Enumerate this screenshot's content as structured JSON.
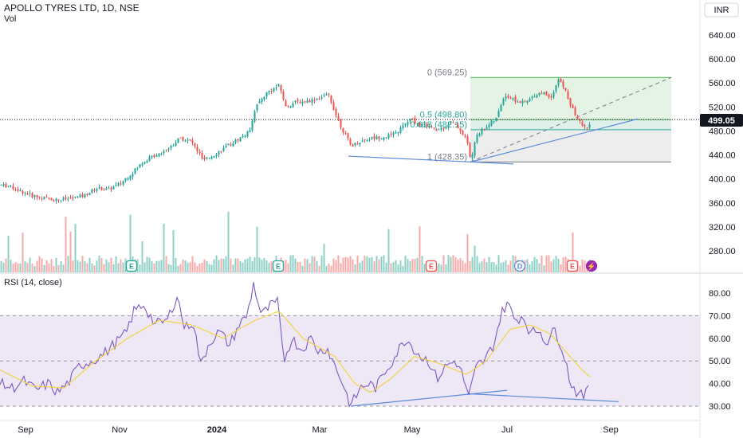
{
  "header": {
    "title": "APOLLO TYRES LTD, 1D, NSE",
    "volume_label": "Vol",
    "currency": "INR"
  },
  "price_axis": {
    "ticks": [
      640,
      600,
      560,
      520,
      480,
      440,
      400,
      360,
      320,
      280
    ],
    "labels": [
      "640.00",
      "600.00",
      "560.00",
      "520.00",
      "480.00",
      "440.00",
      "400.00",
      "360.00",
      "320.00",
      "280.00"
    ],
    "range": [
      250,
      680
    ]
  },
  "last_price": {
    "value": 499.05,
    "label": "499.05",
    "color": "#131722"
  },
  "fib": {
    "levels": [
      {
        "ratio": 0,
        "price": 569.25,
        "label": "0 (569.25)"
      },
      {
        "ratio": 0.5,
        "price": 498.8,
        "label": "0.5 (498.80)"
      },
      {
        "ratio": 0.618,
        "price": 482.15,
        "label": "0.618 (482.15)"
      },
      {
        "ratio": 1,
        "price": 428.35,
        "label": "1 (428.35)"
      }
    ],
    "colors": {
      "upper_fill": "#e4f3e4",
      "middle_fill": "#dff0ea",
      "lower_fill": "#ededed",
      "line_green": "#4caf50",
      "line_teal": "#26a69a",
      "line_gray": "#787b86"
    }
  },
  "rsi": {
    "title": "RSI (14, close)",
    "ticks": [
      80,
      70,
      60,
      50,
      40,
      30
    ],
    "labels": [
      "80.00",
      "70.00",
      "60.00",
      "50.00",
      "40.00",
      "30.00"
    ],
    "range": [
      24,
      86
    ],
    "band": [
      30,
      70
    ],
    "colors": {
      "line": "#7e57c2",
      "ma": "#f2d33a",
      "band": "#ede7f6"
    }
  },
  "time_axis": {
    "labels": [
      "Sep",
      "Nov",
      "2024",
      "Mar",
      "May",
      "Jul",
      "Sep"
    ]
  },
  "events": [
    {
      "type": "earnings",
      "glyph": "E"
    },
    {
      "type": "earnings",
      "glyph": "E"
    },
    {
      "type": "earnings",
      "glyph": "E"
    },
    {
      "type": "dividend",
      "glyph": "D"
    },
    {
      "type": "earnings",
      "glyph": "E"
    },
    {
      "type": "split",
      "glyph": "⚡"
    }
  ],
  "colors": {
    "up": "#26a69a",
    "down": "#ef5350",
    "trend": "#5b8bd9",
    "vol_up": "#8fd0c6",
    "vol_down": "#f7a9a7"
  },
  "chart_data": {
    "type": "candlestick",
    "series_name": "APOLLO TYRES LTD",
    "price_keypoints": [
      [
        0,
        390
      ],
      [
        10,
        388
      ],
      [
        25,
        380
      ],
      [
        40,
        372
      ],
      [
        55,
        368
      ],
      [
        72,
        365
      ],
      [
        90,
        368
      ],
      [
        105,
        372
      ],
      [
        120,
        385
      ],
      [
        135,
        382
      ],
      [
        150,
        392
      ],
      [
        165,
        410
      ],
      [
        180,
        430
      ],
      [
        195,
        440
      ],
      [
        210,
        450
      ],
      [
        225,
        468
      ],
      [
        240,
        462
      ],
      [
        255,
        430
      ],
      [
        270,
        442
      ],
      [
        285,
        455
      ],
      [
        300,
        468
      ],
      [
        312,
        478
      ],
      [
        320,
        520
      ],
      [
        335,
        545
      ],
      [
        350,
        556
      ],
      [
        358,
        520
      ],
      [
        370,
        528
      ],
      [
        385,
        530
      ],
      [
        400,
        535
      ],
      [
        412,
        540
      ],
      [
        420,
        510
      ],
      [
        430,
        480
      ],
      [
        440,
        455
      ],
      [
        450,
        462
      ],
      [
        465,
        468
      ],
      [
        480,
        470
      ],
      [
        495,
        475
      ],
      [
        505,
        488
      ],
      [
        515,
        500
      ],
      [
        525,
        490
      ],
      [
        535,
        490
      ],
      [
        545,
        480
      ],
      [
        555,
        485
      ],
      [
        565,
        495
      ],
      [
        575,
        485
      ],
      [
        585,
        465
      ],
      [
        590,
        430
      ],
      [
        598,
        475
      ],
      [
        610,
        488
      ],
      [
        622,
        500
      ],
      [
        632,
        540
      ],
      [
        640,
        535
      ],
      [
        650,
        528
      ],
      [
        660,
        528
      ],
      [
        670,
        540
      ],
      [
        680,
        545
      ],
      [
        690,
        535
      ],
      [
        700,
        566
      ],
      [
        708,
        550
      ],
      [
        716,
        520
      ],
      [
        724,
        500
      ],
      [
        732,
        485
      ],
      [
        740,
        490
      ]
    ],
    "rsi_keypoints": [
      [
        0,
        40
      ],
      [
        15,
        38
      ],
      [
        30,
        41
      ],
      [
        45,
        37
      ],
      [
        60,
        40
      ],
      [
        72,
        36
      ],
      [
        85,
        40
      ],
      [
        100,
        48
      ],
      [
        115,
        50
      ],
      [
        130,
        53
      ],
      [
        145,
        58
      ],
      [
        158,
        62
      ],
      [
        168,
        72
      ],
      [
        180,
        75
      ],
      [
        195,
        66
      ],
      [
        210,
        68
      ],
      [
        222,
        79
      ],
      [
        232,
        64
      ],
      [
        242,
        68
      ],
      [
        252,
        48
      ],
      [
        262,
        58
      ],
      [
        275,
        63
      ],
      [
        288,
        57
      ],
      [
        300,
        66
      ],
      [
        310,
        70
      ],
      [
        318,
        84
      ],
      [
        328,
        70
      ],
      [
        338,
        74
      ],
      [
        348,
        76
      ],
      [
        356,
        50
      ],
      [
        366,
        60
      ],
      [
        378,
        55
      ],
      [
        390,
        60
      ],
      [
        400,
        54
      ],
      [
        410,
        56
      ],
      [
        420,
        48
      ],
      [
        430,
        40
      ],
      [
        440,
        30
      ],
      [
        452,
        38
      ],
      [
        462,
        40
      ],
      [
        472,
        38
      ],
      [
        482,
        45
      ],
      [
        492,
        50
      ],
      [
        500,
        55
      ],
      [
        510,
        60
      ],
      [
        518,
        56
      ],
      [
        528,
        52
      ],
      [
        538,
        50
      ],
      [
        548,
        42
      ],
      [
        560,
        48
      ],
      [
        572,
        50
      ],
      [
        580,
        44
      ],
      [
        588,
        34
      ],
      [
        598,
        48
      ],
      [
        608,
        50
      ],
      [
        620,
        58
      ],
      [
        628,
        70
      ],
      [
        636,
        76
      ],
      [
        646,
        68
      ],
      [
        656,
        70
      ],
      [
        666,
        62
      ],
      [
        676,
        64
      ],
      [
        686,
        58
      ],
      [
        696,
        64
      ],
      [
        706,
        55
      ],
      [
        716,
        40
      ],
      [
        726,
        35
      ],
      [
        734,
        34
      ],
      [
        740,
        43
      ]
    ],
    "rsi_ma_keypoints": [
      [
        0,
        46
      ],
      [
        40,
        39
      ],
      [
        80,
        38
      ],
      [
        120,
        50
      ],
      [
        160,
        60
      ],
      [
        200,
        68
      ],
      [
        240,
        66
      ],
      [
        280,
        60
      ],
      [
        320,
        68
      ],
      [
        350,
        72
      ],
      [
        380,
        60
      ],
      [
        420,
        52
      ],
      [
        445,
        40
      ],
      [
        465,
        36
      ],
      [
        490,
        42
      ],
      [
        520,
        52
      ],
      [
        550,
        49
      ],
      [
        585,
        44
      ],
      [
        610,
        50
      ],
      [
        640,
        64
      ],
      [
        665,
        66
      ],
      [
        690,
        62
      ],
      [
        710,
        54
      ],
      [
        730,
        46
      ],
      [
        740,
        43
      ]
    ]
  }
}
